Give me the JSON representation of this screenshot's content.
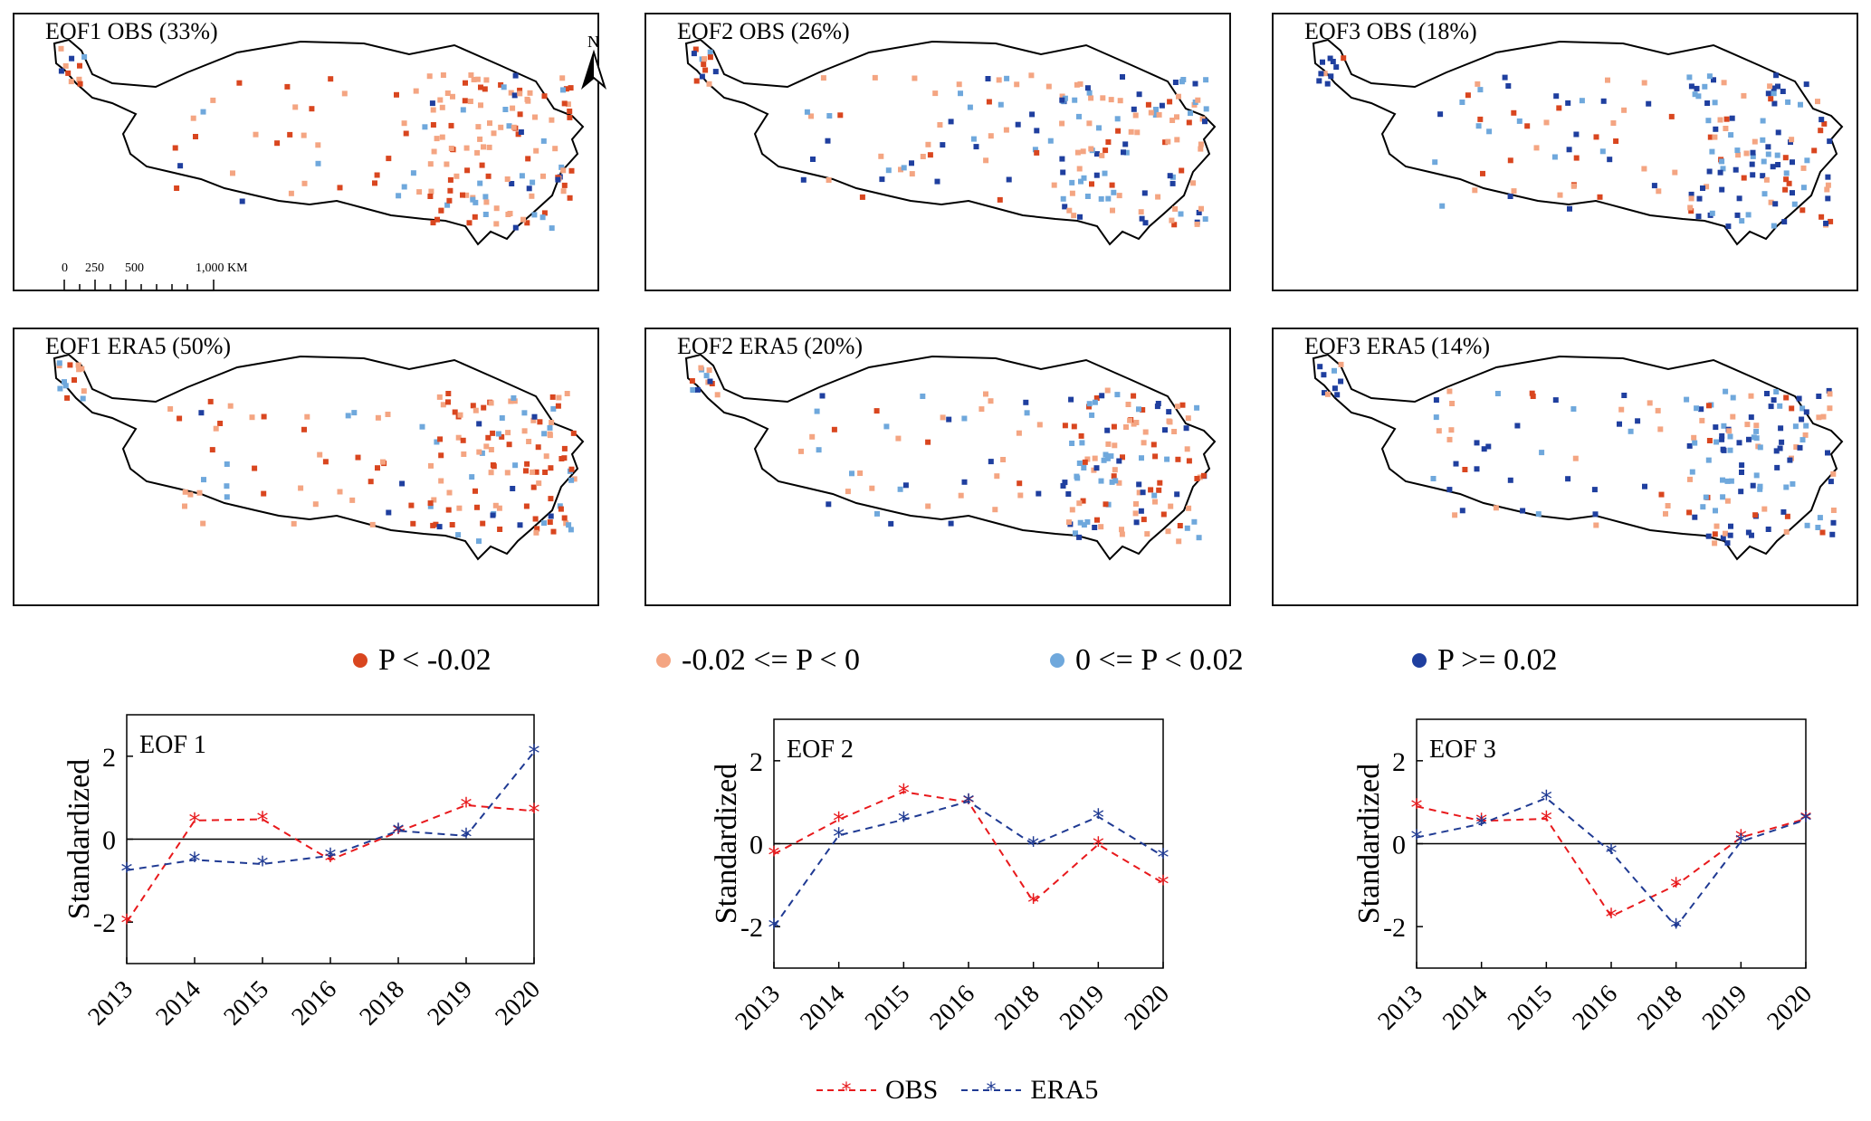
{
  "maps": [
    {
      "id": "eof1-obs",
      "title": "EOF1 OBS (33%)"
    },
    {
      "id": "eof2-obs",
      "title": "EOF2 OBS (26%)"
    },
    {
      "id": "eof3-obs",
      "title": "EOF3 OBS (18%)"
    },
    {
      "id": "eof1-era5",
      "title": "EOF1 ERA5 (50%)"
    },
    {
      "id": "eof2-era5",
      "title": "EOF2 ERA5 (20%)"
    },
    {
      "id": "eof3-era5",
      "title": "EOF3 ERA5 (14%)"
    }
  ],
  "scale_bar": {
    "labels": [
      "0",
      "250",
      "500",
      "1,000 KM"
    ]
  },
  "north_label": "N",
  "legend": [
    {
      "label": "P < -0.02",
      "color": "#d9461f"
    },
    {
      "label": "-0.02 <= P < 0",
      "color": "#f4a582"
    },
    {
      "label": "0 <= P < 0.02",
      "color": "#6fa8dc"
    },
    {
      "label": "P >= 0.02",
      "color": "#1f3f9f"
    }
  ],
  "colors": {
    "obs": "#e8191c",
    "era5": "#1f3a93",
    "zero_line": "#000000"
  },
  "series_legend": {
    "obs": "OBS",
    "era5": "ERA5"
  },
  "chart_data": [
    {
      "type": "line",
      "title": "EOF 1",
      "ylabel": "Standardized",
      "categories": [
        "2013",
        "2014",
        "2015",
        "2016",
        "2018",
        "2019",
        "2020"
      ],
      "ylim": [
        -3,
        3
      ],
      "yticks": [
        -2,
        0,
        2
      ],
      "series": [
        {
          "name": "OBS",
          "values": [
            -2.0,
            0.45,
            0.48,
            -0.5,
            0.18,
            0.82,
            0.68
          ]
        },
        {
          "name": "ERA5",
          "values": [
            -0.75,
            -0.5,
            -0.6,
            -0.4,
            0.2,
            0.08,
            2.1
          ]
        }
      ]
    },
    {
      "type": "line",
      "title": "EOF 2",
      "ylabel": "Standardized",
      "categories": [
        "2013",
        "2014",
        "2015",
        "2016",
        "2018",
        "2019",
        "2020"
      ],
      "ylim": [
        -3,
        3
      ],
      "yticks": [
        -2,
        0,
        2
      ],
      "series": [
        {
          "name": "OBS",
          "values": [
            -0.25,
            0.58,
            1.25,
            1.0,
            -1.4,
            -0.02,
            -0.95
          ]
        },
        {
          "name": "ERA5",
          "values": [
            -2.0,
            0.2,
            0.58,
            1.02,
            -0.02,
            0.65,
            -0.3
          ]
        }
      ]
    },
    {
      "type": "line",
      "title": "EOF 3",
      "ylabel": "Standardized",
      "categories": [
        "2013",
        "2014",
        "2015",
        "2016",
        "2018",
        "2019",
        "2020"
      ],
      "ylim": [
        -3,
        3
      ],
      "yticks": [
        -2,
        0,
        2
      ],
      "series": [
        {
          "name": "OBS",
          "values": [
            0.9,
            0.55,
            0.6,
            -1.75,
            -1.0,
            0.15,
            0.6
          ]
        },
        {
          "name": "ERA5",
          "values": [
            0.15,
            0.48,
            1.1,
            -0.2,
            -2.0,
            0.05,
            0.58
          ]
        }
      ]
    }
  ]
}
